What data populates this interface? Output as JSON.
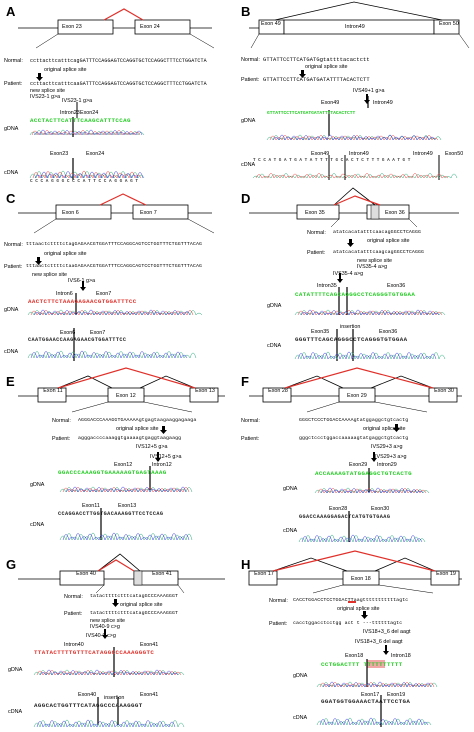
{
  "panels": {
    "A": {
      "label": "A",
      "exon_left": "Exon 23",
      "exon_right": "Exon 24",
      "normal_label": "Normal:",
      "normal_seq": "ccttacttcatttcagGATTTCCAGGAGTCCAGGTGCTCCAGGCTTTCCTGGATCTA",
      "patient_label": "Patient:",
      "patient_seq": "ccttacttcatttcaaGATTTCCAGGAGTCCAGGTGCTCCAGGCTTTCCTGGATCTA",
      "orig_site": "original splice site",
      "new_site": "new splice site",
      "mutation": "IVS23-1 g>a",
      "mutation2": "IVS23-1 g>a",
      "intron_lbl": "Intron23",
      "exon_lbl": "Exon24",
      "gdna": "gDNA",
      "cdna": "cDNA",
      "gseq": "ACCTACTTCATTTCAAGCATTTCCAG",
      "cexon_left": "Exon23",
      "cexon_right": "Exon24",
      "cseq": "C C C A G G G C C C A T T C C A G G A G T"
    },
    "B": {
      "label": "B",
      "exon_left": "Exon 49",
      "intron": "Intron49",
      "exon_right": "Exon 50",
      "normal_label": "Normal:",
      "normal_seq": "GTTATTCCTTCATGATGgtattttacactctt",
      "patient_label": "Patient:",
      "patient_seq": "GTTATTCCTTCATGATGATATTTTACACTCTT",
      "orig_site": "original splice site",
      "mutation": "IVS49+1 g>a",
      "exon_lbl": "Exon49",
      "intron_lbl": "Intron49",
      "gdna": "gDNA",
      "gseq": "GTTATTCCTTCATGATGATATTTTACACTCTT",
      "cdna": "cDNA",
      "c1": "Exon49",
      "c2": "Intron49",
      "c3": "Intron49",
      "c4": "Exon50",
      "cseq": "T C C A T G A T G A T A T T T T G C A C T C T T T G A A T G T"
    },
    "C": {
      "label": "C",
      "exon_left": "Exon 6",
      "exon_right": "Exon 7",
      "normal_label": "Normal:",
      "normal_seq": "tttaactcttttctagGAGAACGTGGATTTCCAGGCAGTCCTGGTTTCTGGTTTACAG",
      "patient_label": "Patient:",
      "patient_seq": "tttaactcttttctaaGAGAACGTGGATTTCCAGGCAGTCCTGGTTTCTGGTTTACAG",
      "orig_site": "original splice site",
      "new_site": "new splice site",
      "mutation": "IVS6-1 g>a",
      "intron_lbl": "Intron6",
      "exon_lbl": "Exon7",
      "gdna": "gDNA",
      "gseq": "AACTCTTCTAAAGAGAACGTGGATTTCC",
      "cdna": "cDNA",
      "cexon_left": "Exon6",
      "cexon_right": "Exon7",
      "cseq": "CAATGGAACCAAGAGAACGTGGATTTCC"
    },
    "D": {
      "label": "D",
      "exon_left": "Exon 35",
      "exon_right": "Exon 36",
      "normal_label": "Normal:",
      "normal_seq": "atatcacatatttcaacagGGCCTCAGGG",
      "patient_label": "Patient:",
      "patient_seq": "atatcacatatttcaagcagGGCCTCAGGG",
      "orig_site": "original splice site",
      "new_site": "new splice site",
      "mutation": "IVS35-4 a>g",
      "mutation2": "IVS35-4 a>g",
      "intron_lbl": "Intron35",
      "exon_lbl": "Exon36",
      "gdna": "gDNA",
      "gseq": "CATATTTTCAGCAGGGCCTCAGGGTGTGGAA",
      "cdna": "cDNA",
      "c_exon35": "Exon35",
      "c_insertion": "insertion",
      "c_exon36": "Exon36",
      "cseq": "GGGTTTCAGCAGGGCCTCAGGGTGTGGAA"
    },
    "E": {
      "label": "E",
      "exon_left": "Exon 11",
      "exon_mid": "Exon 12",
      "exon_right": "Exon 13",
      "normal_label": "Normal:",
      "normal_seq": "AGGGACCCAAAGGTGAAAAAgtgagtaagaaggagaaga",
      "patient_label": "Patient:",
      "patient_seq": "agggaccccaaaggtgaaaagtgaggtaagaagg",
      "orig_site": "original splice site",
      "mutation": "IVS12+5 g>a",
      "mutation2": "IVS12+5 g>a",
      "exon_lbl": "Exon12",
      "intron_lbl": "Intron12",
      "gdna": "gDNA",
      "gseq": "GGACCCAAAGGTGAAAAAGTGAGTAAAG",
      "cdna": "cDNA",
      "cexon_left": "Exon11",
      "cexon_right": "Exon13",
      "cseq": "CCAGGACCTTGGTGACAAAGGTTCCTCCAG"
    },
    "F": {
      "label": "F",
      "exon_left": "Exon 28",
      "exon_mid": "Exon 29",
      "exon_right": "Exon 30",
      "normal_label": "Normal:",
      "normal_seq": "GGGCTCCCTGGACCAAAAgtatggaggctgtcactg",
      "patient_label": "Patient:",
      "patient_seq": "gggctccctggaccaaaaagtatgaggctgtcactg",
      "orig_site": "original splice site",
      "mutation": "IVS29+3 a>g",
      "mutation2": "IVS29+3 a>g",
      "exon_lbl": "Exon29",
      "intron_lbl": "Intron29",
      "gdna": "gDNA",
      "gseq": "ACCAAAAGTATGGAGGCTGTCACTG",
      "cdna": "cDNA",
      "cexon_left": "Exon28",
      "cexon_right": "Exon30",
      "cseq": "GGACCAAAGGAGACTCATGTGTGAAG"
    },
    "G": {
      "label": "G",
      "exon_left": "Exon 40",
      "exon_right": "Exon 41",
      "normal_label": "Normal:",
      "normal_seq": "tatacttttctttcatagGCCCAAAGGGT",
      "patient_label": "Patient:",
      "patient_seq": "tatacttttctttcatagGCCCAAAGGGT",
      "orig_site": "original splice site",
      "new_site": "new splice site",
      "mutation": "IVS40-9 c>g",
      "mutation2": "IVS40-9 c>g",
      "intron_lbl": "Intron40",
      "exon_lbl": "Exon41",
      "gdna": "gDNA",
      "gseq": "TTATACTTTTGTTTCATAGGCCCAAAGGGTC",
      "cdna": "cDNA",
      "c_exon40": "Exon40",
      "c_insertion": "insertion",
      "c_exon41": "Exon41",
      "cseq": "AGGCACTGGTTTCATAGGCCCAAAGGGT"
    },
    "H": {
      "label": "H",
      "exon_left": "Exon 17",
      "exon_mid": "Exon 18",
      "exon_right": "Exon 19",
      "normal_label": "Normal:",
      "normal_seq": "CACCTGGACCTCCTGGACTTaagtttttttttttagtc",
      "patient_label": "Patient:",
      "patient_seq": "cacctggacctcctgg act t ---ttttttagtc",
      "orig_site": "original splice site",
      "mutation": "IVS18+3_6 del aagt",
      "mutation2": "IVS18+3_6 del aagt",
      "exon_lbl": "Exon18",
      "intron_lbl": "Intron18",
      "gdna": "gDNA",
      "gseq": "CCTGGACTTT  TTTTTTTTTT",
      "cdna": "cDNA",
      "cexon_left": "Exon17",
      "cexon_right": "Exon19",
      "cseq": "GGATGGTGGAAACTAATTCCTGA"
    }
  },
  "colors": {
    "red_line": "#e0302a",
    "green_seq": "#22cc22",
    "red_seq": "#e0302a",
    "highlight": "#f2a6a6"
  }
}
